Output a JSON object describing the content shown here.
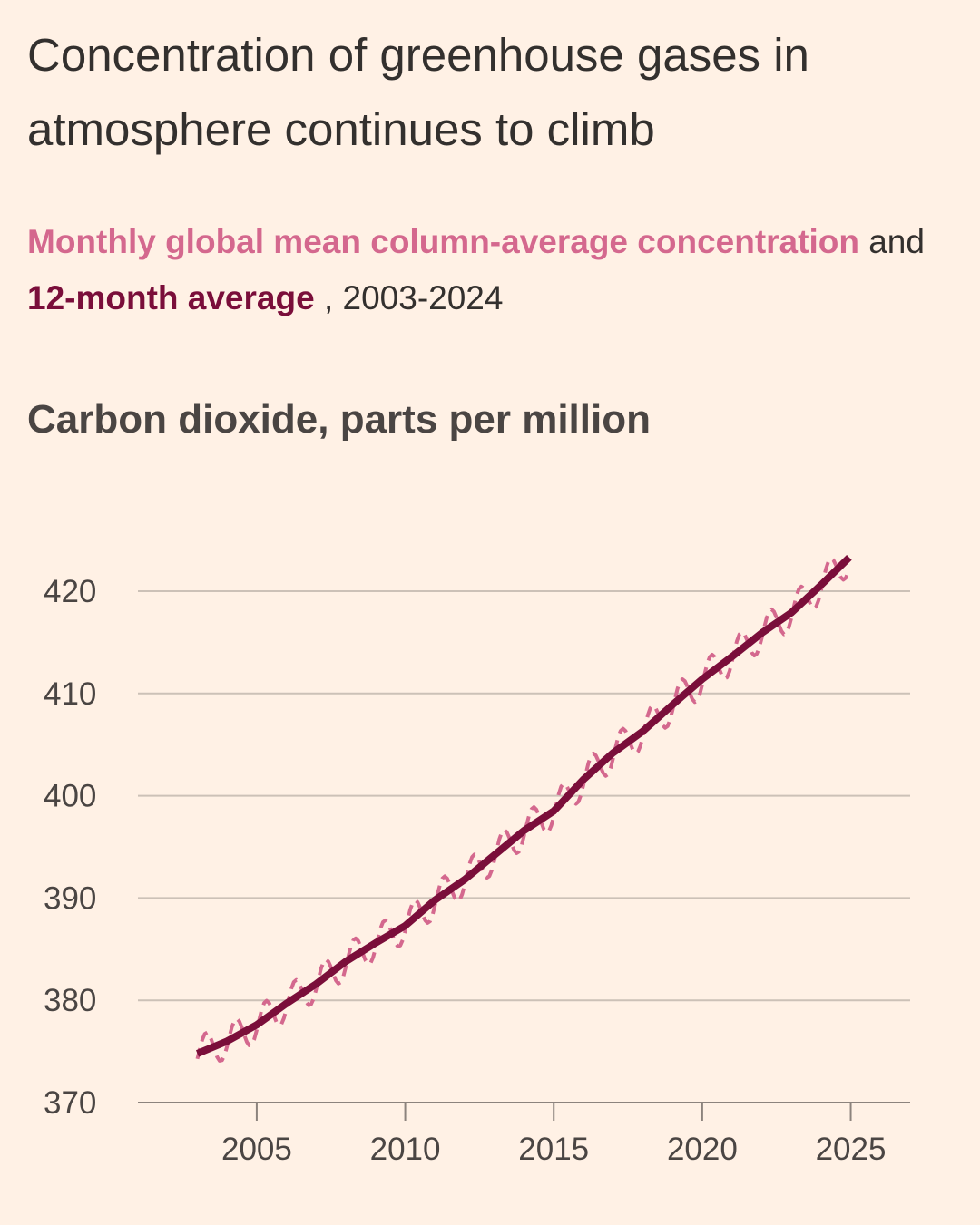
{
  "title": "Concentration of greenhouse gases in atmosphere continues to climb",
  "subtitle": {
    "monthly": "Monthly global mean column-average concentration",
    "and": "and",
    "average": "12-month average",
    "range": ", 2003-2024"
  },
  "colors": {
    "background": "#fff1e5",
    "monthly": "#d4688e",
    "average": "#7a0e3a",
    "grid": "#ccc1b7"
  },
  "chart_data": {
    "type": "line",
    "title": "Carbon dioxide, parts per million",
    "xlim": [
      2001,
      2027
    ],
    "ylim": [
      370,
      425
    ],
    "x_ticks": [
      2005,
      2010,
      2015,
      2020,
      2025
    ],
    "x_tick_labels": [
      "2005",
      "2010",
      "2015",
      "2020",
      "2025"
    ],
    "y_ticks": [
      370,
      380,
      390,
      400,
      410,
      420
    ],
    "y_tick_labels": [
      "370",
      "380",
      "390",
      "400",
      "410",
      "420"
    ],
    "series": [
      {
        "name": "Monthly global mean column-average concentration",
        "style": "dashed",
        "seasonal_amplitude_ppm": 1.7,
        "note": "monthly values oscillate seasonally around the 12-month average"
      },
      {
        "name": "12-month average",
        "x": [
          2003.0,
          2004.0,
          2005.0,
          2006.0,
          2007.0,
          2008.0,
          2009.0,
          2010.0,
          2011.0,
          2012.0,
          2013.0,
          2014.0,
          2015.0,
          2016.0,
          2017.0,
          2018.0,
          2019.0,
          2020.0,
          2021.0,
          2022.0,
          2023.0,
          2024.0,
          2024.95
        ],
        "y": [
          374.8,
          376.0,
          377.6,
          379.7,
          381.6,
          383.8,
          385.6,
          387.3,
          389.8,
          391.8,
          394.2,
          396.6,
          398.5,
          401.6,
          404.2,
          406.3,
          408.9,
          411.4,
          413.6,
          415.9,
          417.9,
          420.6,
          423.3
        ]
      }
    ]
  }
}
